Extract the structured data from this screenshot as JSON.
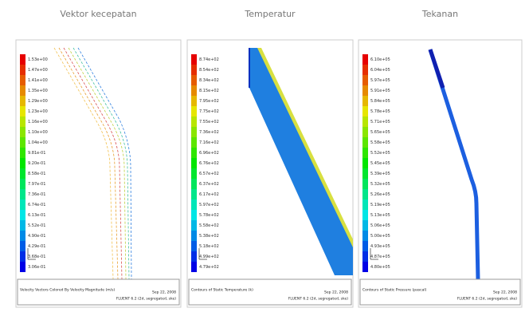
{
  "panels": [
    {
      "title": "Vektor kecepatan",
      "colorbar": [
        "1.53e+00",
        "1.47e+00",
        "1.41e+00",
        "1.35e+00",
        "1.29e+00",
        "1.23e+00",
        "1.16e+00",
        "1.10e+00",
        "1.04e+00",
        "9.81e-01",
        "9.20e-01",
        "8.58e-01",
        "7.97e-01",
        "7.36e-01",
        "6.74e-01",
        "6.13e-01",
        "5.52e-01",
        "4.90e-01",
        "4.29e-01",
        "3.68e-01",
        "3.06e-01"
      ],
      "caption": "Velocity Vectors Colored By Velocity Magnitude (m/s)",
      "date": "Sep 22, 2008",
      "solver": "FLUENT 6.2 (2d, segregated, ske)"
    },
    {
      "title": "Temperatur",
      "colorbar": [
        "8.74e+02",
        "8.54e+02",
        "8.34e+02",
        "8.15e+02",
        "7.95e+02",
        "7.75e+02",
        "7.55e+02",
        "7.36e+02",
        "7.16e+02",
        "6.96e+02",
        "6.76e+02",
        "6.57e+02",
        "6.37e+02",
        "6.17e+02",
        "5.97e+02",
        "5.78e+02",
        "5.58e+02",
        "5.38e+02",
        "5.18e+02",
        "4.99e+02",
        "4.79e+02"
      ],
      "caption": "Contours of Static Temperature (k)",
      "date": "Sep 22, 2008",
      "solver": "FLUENT 6.2 (2d, segregated, ske)"
    },
    {
      "title": "Tekanan",
      "colorbar": [
        "6.10e+05",
        "6.04e+05",
        "5.97e+05",
        "5.91e+05",
        "5.84e+05",
        "5.78e+05",
        "5.71e+05",
        "5.65e+05",
        "5.58e+05",
        "5.52e+05",
        "5.45e+05",
        "5.39e+05",
        "5.32e+05",
        "5.26e+05",
        "5.19e+05",
        "5.13e+05",
        "5.06e+05",
        "5.00e+05",
        "4.93e+05",
        "4.87e+05",
        "4.80e+05"
      ],
      "caption": "Contours of Static Pressure (pascal)",
      "date": "Sep 22, 2008",
      "solver": "FLUENT 6.2 (2d, segregated, ske)"
    }
  ]
}
